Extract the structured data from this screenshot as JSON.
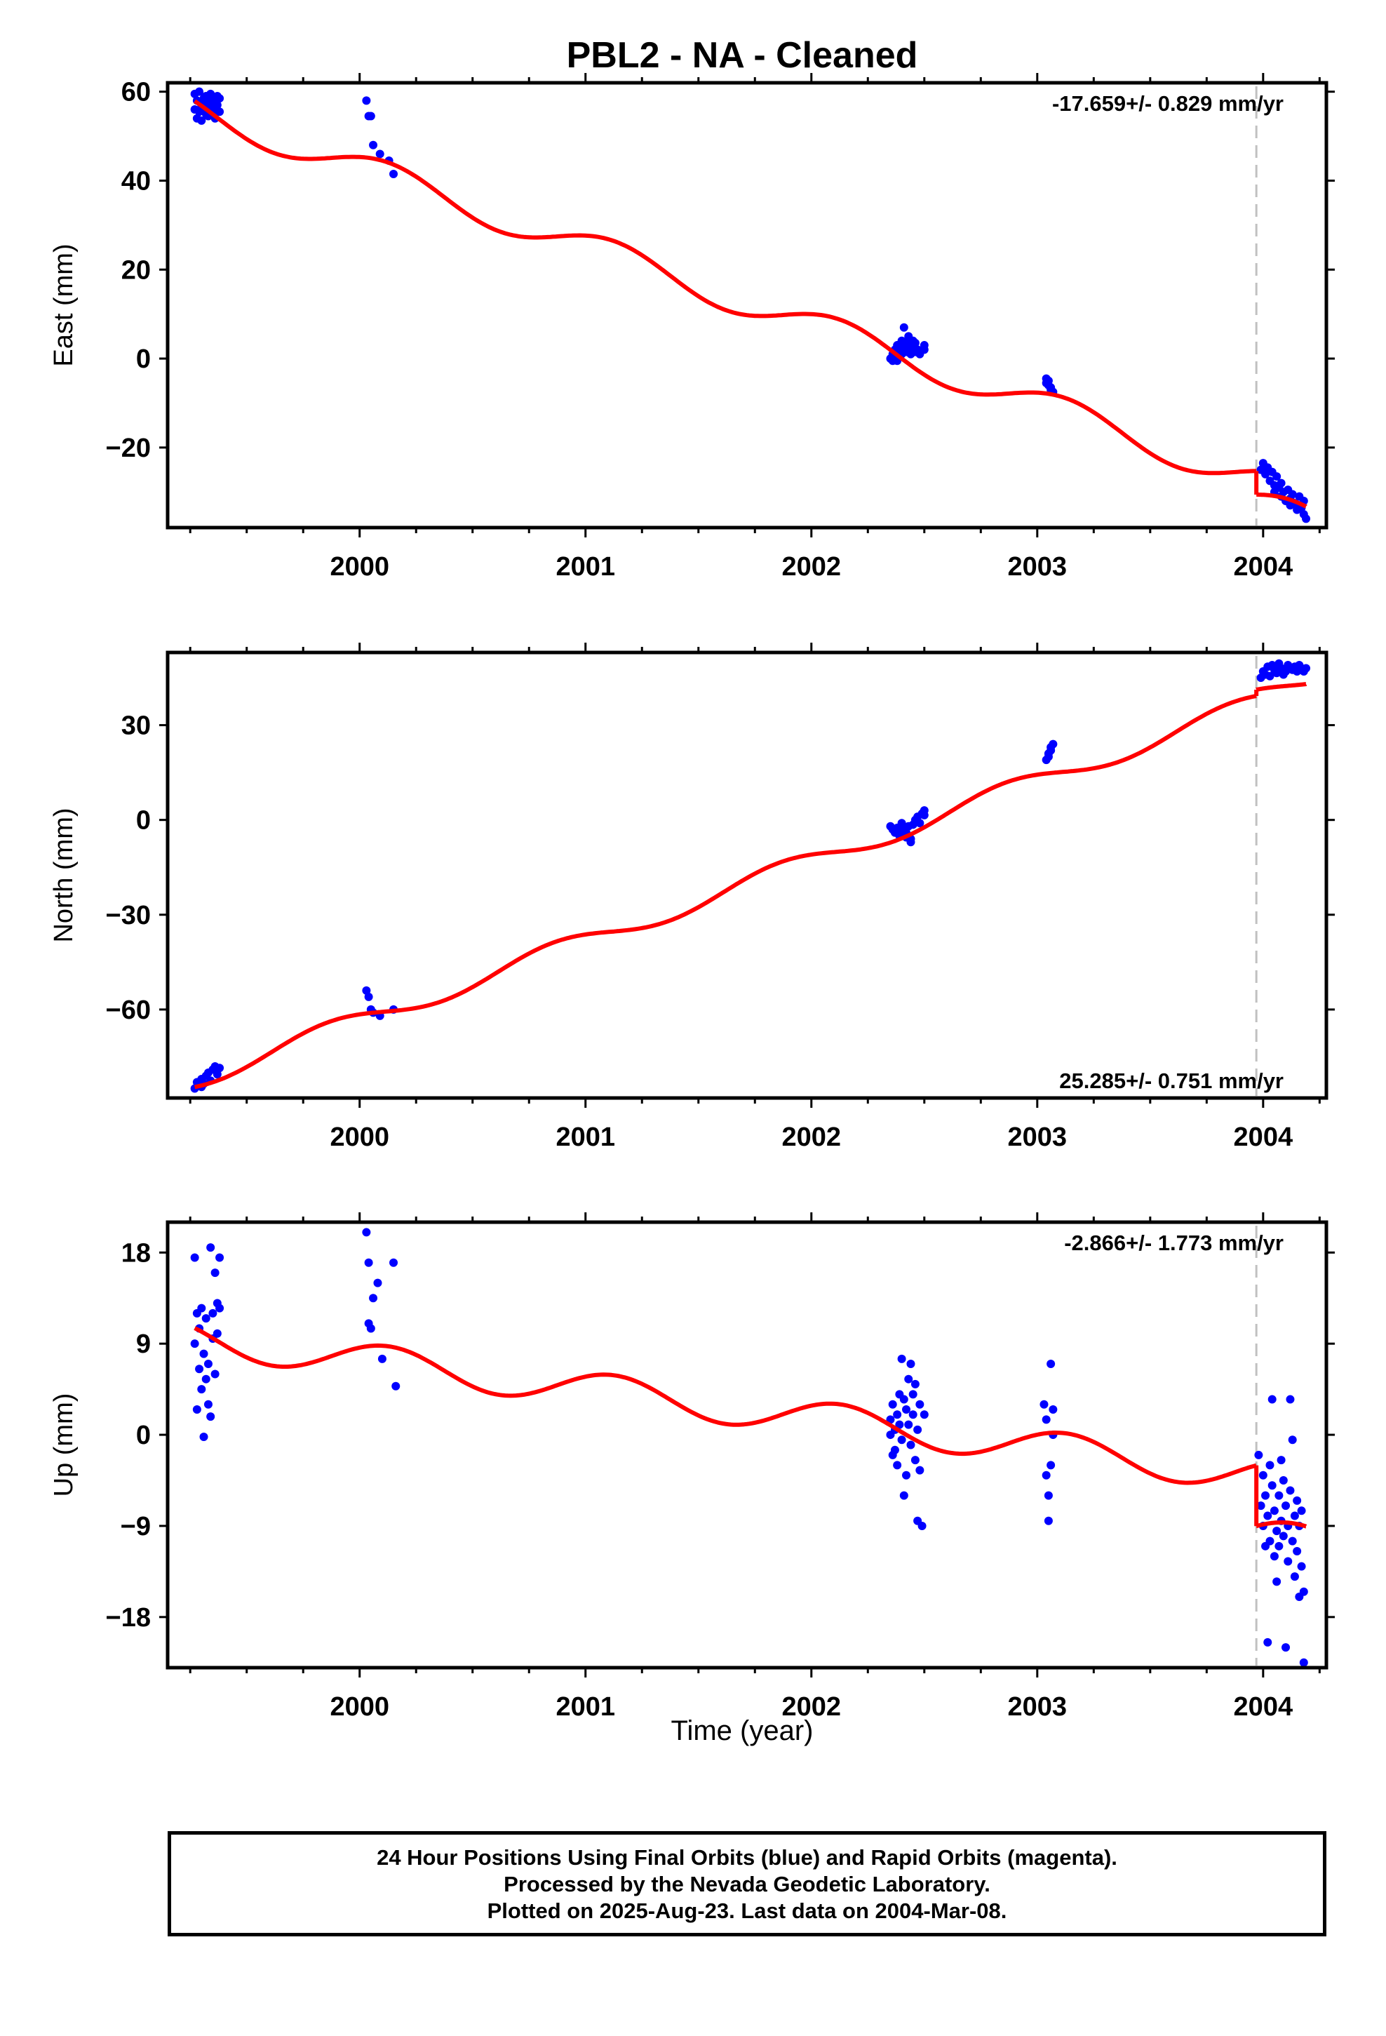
{
  "title": "PBL2  - NA - Cleaned",
  "xlabel": "Time (year)",
  "footer": {
    "line1": "24 Hour Positions Using Final Orbits (blue) and Rapid Orbits (magenta).",
    "line2": "Processed by the Nevada Geodetic Laboratory.",
    "line3": "Plotted on 2025-Aug-23. Last data on 2004-Mar-08."
  },
  "colors": {
    "data": "#0000ff",
    "model": "#ff0000",
    "step": "#c0c0c0",
    "frame": "#000000"
  },
  "chart_data": [
    {
      "type": "scatter",
      "component": "east",
      "ylabel": "East (mm)",
      "rate": "-17.659+/- 0.829 mm/yr",
      "rate_position": "top-right",
      "xlim": [
        1999.15,
        2004.28
      ],
      "ylim": [
        -38,
        62
      ],
      "yticks": [
        -20,
        0,
        20,
        40,
        60
      ],
      "ytick_labels": [
        "−20",
        "0",
        "20",
        "40",
        "60"
      ],
      "xticks": [
        2000,
        2001,
        2002,
        2003,
        2004
      ],
      "xtick_labels": [
        "2000",
        "2001",
        "2002",
        "2003",
        "2004"
      ],
      "step_epoch": 2003.97,
      "model_offset": [
        55.8,
        -17.659,
        2.4,
        2.4,
        -5.3
      ],
      "points": [
        [
          1999.27,
          59.5
        ],
        [
          1999.27,
          56
        ],
        [
          1999.28,
          54
        ],
        [
          1999.28,
          58
        ],
        [
          1999.29,
          55.5
        ],
        [
          1999.29,
          60
        ],
        [
          1999.3,
          57
        ],
        [
          1999.3,
          53.5
        ],
        [
          1999.31,
          56.5
        ],
        [
          1999.31,
          58.5
        ],
        [
          1999.32,
          55
        ],
        [
          1999.32,
          59
        ],
        [
          1999.33,
          57.5
        ],
        [
          1999.33,
          54.5
        ],
        [
          1999.34,
          56
        ],
        [
          1999.34,
          59.5
        ],
        [
          1999.35,
          55
        ],
        [
          1999.35,
          58
        ],
        [
          1999.36,
          56.5
        ],
        [
          1999.36,
          54
        ],
        [
          1999.37,
          57
        ],
        [
          1999.37,
          59
        ],
        [
          1999.38,
          55.5
        ],
        [
          1999.38,
          58.5
        ],
        [
          2000.03,
          58
        ],
        [
          2000.04,
          54.5
        ],
        [
          2000.05,
          54.5
        ],
        [
          2000.06,
          48
        ],
        [
          2000.09,
          46
        ],
        [
          2000.13,
          44.5
        ],
        [
          2000.15,
          41.5
        ],
        [
          2002.35,
          0
        ],
        [
          2002.36,
          -0.5
        ],
        [
          2002.36,
          1
        ],
        [
          2002.37,
          2
        ],
        [
          2002.37,
          0.5
        ],
        [
          2002.38,
          3
        ],
        [
          2002.38,
          -0.5
        ],
        [
          2002.39,
          1.5
        ],
        [
          2002.39,
          2.5
        ],
        [
          2002.4,
          1
        ],
        [
          2002.4,
          4
        ],
        [
          2002.41,
          2
        ],
        [
          2002.41,
          7
        ],
        [
          2002.42,
          3.5
        ],
        [
          2002.42,
          1.5
        ],
        [
          2002.43,
          2.5
        ],
        [
          2002.43,
          5
        ],
        [
          2002.44,
          1
        ],
        [
          2002.44,
          3
        ],
        [
          2002.45,
          2
        ],
        [
          2002.45,
          4
        ],
        [
          2002.46,
          1.5
        ],
        [
          2002.46,
          3.5
        ],
        [
          2002.47,
          2
        ],
        [
          2002.48,
          1
        ],
        [
          2002.5,
          2
        ],
        [
          2002.5,
          3
        ],
        [
          2003.04,
          -4.5
        ],
        [
          2003.04,
          -5.5
        ],
        [
          2003.05,
          -6
        ],
        [
          2003.05,
          -5
        ],
        [
          2003.06,
          -7
        ],
        [
          2003.06,
          -6.5
        ],
        [
          2003.07,
          -7.5
        ],
        [
          2003.99,
          -25
        ],
        [
          2004.0,
          -23.5
        ],
        [
          2004.01,
          -26
        ],
        [
          2004.02,
          -24.5
        ],
        [
          2004.03,
          -27.5
        ],
        [
          2004.04,
          -25.5
        ],
        [
          2004.05,
          -28.5
        ],
        [
          2004.05,
          -30
        ],
        [
          2004.06,
          -26.5
        ],
        [
          2004.07,
          -29
        ],
        [
          2004.08,
          -31
        ],
        [
          2004.08,
          -28
        ],
        [
          2004.09,
          -30
        ],
        [
          2004.1,
          -32
        ],
        [
          2004.11,
          -29.5
        ],
        [
          2004.12,
          -31.5
        ],
        [
          2004.12,
          -33
        ],
        [
          2004.13,
          -30.5
        ],
        [
          2004.14,
          -32.5
        ],
        [
          2004.15,
          -34
        ],
        [
          2004.16,
          -31
        ],
        [
          2004.17,
          -33.5
        ],
        [
          2004.18,
          -35
        ],
        [
          2004.18,
          -32
        ],
        [
          2004.19,
          -36
        ]
      ]
    },
    {
      "type": "scatter",
      "component": "north",
      "ylabel": "North (mm)",
      "rate": "25.285+/- 0.751 mm/yr",
      "rate_position": "bottom-right",
      "xlim": [
        1999.15,
        2004.28
      ],
      "ylim": [
        -88,
        53
      ],
      "yticks": [
        -60,
        -30,
        0,
        30
      ],
      "ytick_labels": [
        "−60",
        "−30",
        "0",
        "30"
      ],
      "xticks": [
        2000,
        2001,
        2002,
        2003,
        2004
      ],
      "xtick_labels": [
        "2000",
        "2001",
        "2002",
        "2003",
        "2004"
      ],
      "step_epoch": 2003.97,
      "model_offset": [
        -82,
        25.285,
        -2.3,
        2.0,
        2.0
      ],
      "points": [
        [
          1999.27,
          -85
        ],
        [
          1999.28,
          -83
        ],
        [
          1999.29,
          -84
        ],
        [
          1999.3,
          -82
        ],
        [
          1999.3,
          -84.5
        ],
        [
          1999.31,
          -83.5
        ],
        [
          1999.32,
          -81
        ],
        [
          1999.33,
          -80
        ],
        [
          1999.34,
          -82.5
        ],
        [
          1999.35,
          -79
        ],
        [
          1999.36,
          -78
        ],
        [
          1999.37,
          -80.5
        ],
        [
          1999.38,
          -78.5
        ],
        [
          2000.03,
          -54
        ],
        [
          2000.04,
          -56
        ],
        [
          2000.05,
          -60
        ],
        [
          2000.06,
          -61
        ],
        [
          2000.09,
          -62
        ],
        [
          2000.15,
          -60
        ],
        [
          2002.35,
          -2
        ],
        [
          2002.36,
          -3
        ],
        [
          2002.37,
          -4
        ],
        [
          2002.38,
          -2.5
        ],
        [
          2002.39,
          -5
        ],
        [
          2002.39,
          -3.5
        ],
        [
          2002.4,
          -1
        ],
        [
          2002.41,
          -3
        ],
        [
          2002.42,
          -5.5
        ],
        [
          2002.42,
          -4
        ],
        [
          2002.43,
          -2
        ],
        [
          2002.44,
          -6
        ],
        [
          2002.44,
          -7
        ],
        [
          2002.45,
          -1.5
        ],
        [
          2002.46,
          0
        ],
        [
          2002.47,
          1
        ],
        [
          2002.48,
          -1
        ],
        [
          2002.49,
          2
        ],
        [
          2002.5,
          3
        ],
        [
          2002.5,
          1.5
        ],
        [
          2003.04,
          19
        ],
        [
          2003.05,
          20
        ],
        [
          2003.05,
          21
        ],
        [
          2003.06,
          22
        ],
        [
          2003.06,
          23
        ],
        [
          2003.07,
          24
        ],
        [
          2003.99,
          45
        ],
        [
          2004.0,
          47
        ],
        [
          2004.01,
          46
        ],
        [
          2004.02,
          48.5
        ],
        [
          2004.03,
          45.5
        ],
        [
          2004.04,
          49
        ],
        [
          2004.05,
          47.5
        ],
        [
          2004.06,
          46.5
        ],
        [
          2004.07,
          49.5
        ],
        [
          2004.08,
          48
        ],
        [
          2004.09,
          46
        ],
        [
          2004.1,
          47
        ],
        [
          2004.11,
          49
        ],
        [
          2004.12,
          48
        ],
        [
          2004.13,
          47.5
        ],
        [
          2004.14,
          48.5
        ],
        [
          2004.15,
          47
        ],
        [
          2004.16,
          49
        ],
        [
          2004.17,
          48
        ],
        [
          2004.18,
          47
        ],
        [
          2004.19,
          48
        ]
      ]
    },
    {
      "type": "scatter",
      "component": "up",
      "ylabel": "Up (mm)",
      "rate": "-2.866+/- 1.773 mm/yr",
      "rate_position": "top-right",
      "xlim": [
        1999.15,
        2004.28
      ],
      "ylim": [
        -23,
        21
      ],
      "yticks": [
        -18,
        -9,
        0,
        9,
        18
      ],
      "ytick_labels": [
        "−18",
        "−9",
        "0",
        "9",
        "18"
      ],
      "xticks": [
        2000,
        2001,
        2002,
        2003,
        2004
      ],
      "xtick_labels": [
        "2000",
        "2001",
        "2002",
        "2003",
        "2004"
      ],
      "step_epoch": 2003.97,
      "model_offset": [
        9.5,
        -2.866,
        1.2,
        1.2,
        -6.0
      ],
      "points": [
        [
          1999.27,
          17.5
        ],
        [
          1999.27,
          9
        ],
        [
          1999.28,
          12
        ],
        [
          1999.28,
          2.5
        ],
        [
          1999.29,
          6.5
        ],
        [
          1999.29,
          10.5
        ],
        [
          1999.3,
          4.5
        ],
        [
          1999.3,
          12.5
        ],
        [
          1999.31,
          8
        ],
        [
          1999.31,
          -0.2
        ],
        [
          1999.32,
          5.5
        ],
        [
          1999.32,
          11.5
        ],
        [
          1999.33,
          3
        ],
        [
          1999.33,
          7
        ],
        [
          1999.34,
          18.5
        ],
        [
          1999.34,
          1.8
        ],
        [
          1999.35,
          12
        ],
        [
          1999.35,
          9.5
        ],
        [
          1999.36,
          16
        ],
        [
          1999.36,
          6
        ],
        [
          1999.37,
          13
        ],
        [
          1999.37,
          10
        ],
        [
          1999.38,
          17.5
        ],
        [
          1999.38,
          12.5
        ],
        [
          2000.03,
          20
        ],
        [
          2000.04,
          11
        ],
        [
          2000.04,
          17
        ],
        [
          2000.05,
          10.5
        ],
        [
          2000.06,
          13.5
        ],
        [
          2000.08,
          15
        ],
        [
          2000.1,
          7.5
        ],
        [
          2000.15,
          17
        ],
        [
          2000.16,
          4.8
        ],
        [
          2002.35,
          0
        ],
        [
          2002.35,
          1.5
        ],
        [
          2002.36,
          -2
        ],
        [
          2002.36,
          3
        ],
        [
          2002.37,
          0.5
        ],
        [
          2002.37,
          -1.5
        ],
        [
          2002.38,
          2
        ],
        [
          2002.38,
          -3
        ],
        [
          2002.39,
          1
        ],
        [
          2002.39,
          4
        ],
        [
          2002.4,
          -0.5
        ],
        [
          2002.4,
          7.5
        ],
        [
          2002.41,
          3.5
        ],
        [
          2002.41,
          -6
        ],
        [
          2002.42,
          2.5
        ],
        [
          2002.42,
          -4
        ],
        [
          2002.43,
          5.5
        ],
        [
          2002.43,
          1
        ],
        [
          2002.44,
          7
        ],
        [
          2002.44,
          -1
        ],
        [
          2002.45,
          4
        ],
        [
          2002.45,
          2
        ],
        [
          2002.46,
          -2.5
        ],
        [
          2002.46,
          5
        ],
        [
          2002.47,
          0.5
        ],
        [
          2002.47,
          -8.5
        ],
        [
          2002.48,
          3
        ],
        [
          2002.48,
          -3.5
        ],
        [
          2002.49,
          -9
        ],
        [
          2002.5,
          2
        ],
        [
          2003.03,
          3
        ],
        [
          2003.04,
          -4
        ],
        [
          2003.04,
          1.5
        ],
        [
          2003.05,
          -6
        ],
        [
          2003.05,
          -8.5
        ],
        [
          2003.06,
          -3
        ],
        [
          2003.06,
          7
        ],
        [
          2003.07,
          0
        ],
        [
          2003.07,
          2.5
        ],
        [
          2003.98,
          -2
        ],
        [
          2003.99,
          -7
        ],
        [
          2004.0,
          -9
        ],
        [
          2004.0,
          -4
        ],
        [
          2004.01,
          -11
        ],
        [
          2004.01,
          -6
        ],
        [
          2004.02,
          -20.5
        ],
        [
          2004.02,
          -8
        ],
        [
          2004.03,
          -3
        ],
        [
          2004.03,
          -10.5
        ],
        [
          2004.04,
          -5
        ],
        [
          2004.04,
          3.5
        ],
        [
          2004.05,
          -12
        ],
        [
          2004.05,
          -7.5
        ],
        [
          2004.06,
          -9.5
        ],
        [
          2004.06,
          -14.5
        ],
        [
          2004.07,
          -6
        ],
        [
          2004.07,
          -11
        ],
        [
          2004.08,
          -2.5
        ],
        [
          2004.08,
          -8.5
        ],
        [
          2004.09,
          -10
        ],
        [
          2004.09,
          -4.5
        ],
        [
          2004.1,
          -21
        ],
        [
          2004.1,
          -7
        ],
        [
          2004.11,
          -12.5
        ],
        [
          2004.11,
          -9
        ],
        [
          2004.12,
          3.5
        ],
        [
          2004.12,
          -5.5
        ],
        [
          2004.13,
          -10.5
        ],
        [
          2004.13,
          -0.5
        ],
        [
          2004.14,
          -8
        ],
        [
          2004.14,
          -14
        ],
        [
          2004.15,
          -11.5
        ],
        [
          2004.15,
          -6.5
        ],
        [
          2004.16,
          -16
        ],
        [
          2004.16,
          -9
        ],
        [
          2004.17,
          -13
        ],
        [
          2004.17,
          -7.5
        ],
        [
          2004.18,
          -15.5
        ],
        [
          2004.18,
          -22.5
        ]
      ]
    }
  ]
}
